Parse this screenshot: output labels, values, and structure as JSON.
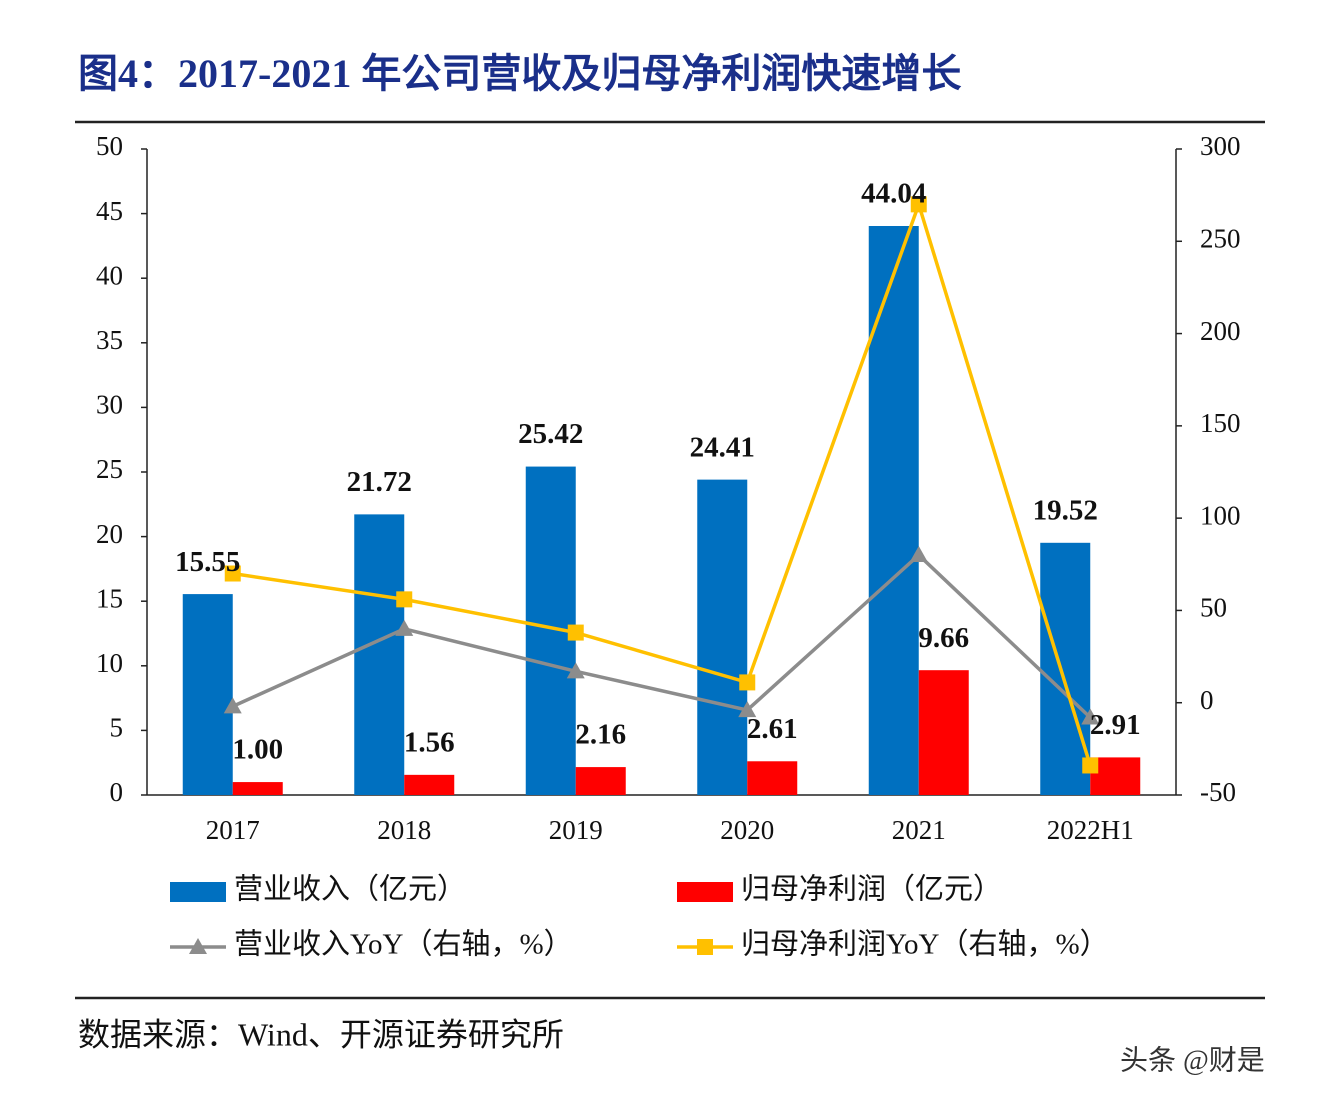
{
  "chart_data": {
    "type": "bar",
    "title": "图4：2017-2021 年公司营收及归母净利润快速增长",
    "source": "数据来源：Wind、开源证券研究所",
    "watermark": "头条 @财是",
    "categories": [
      "2017",
      "2018",
      "2019",
      "2020",
      "2021",
      "2022H1"
    ],
    "series": [
      {
        "name": "营业收入（亿元）",
        "type": "bar",
        "color": "#0070c0",
        "values": [
          15.55,
          21.72,
          25.42,
          24.41,
          44.04,
          19.52
        ],
        "value_labels": [
          "15.55",
          "21.72",
          "25.42",
          "24.41",
          "44.04",
          "19.52"
        ]
      },
      {
        "name": "归母净利润（亿元）",
        "type": "bar",
        "color": "#ff0000",
        "values": [
          1.0,
          1.56,
          2.16,
          2.61,
          9.66,
          2.91
        ],
        "value_labels": [
          "1.00",
          "1.56",
          "2.16",
          "2.61",
          "9.66",
          "2.91"
        ]
      },
      {
        "name": "营业收入YoY（右轴，%）",
        "type": "line",
        "marker": "triangle",
        "axis": "y2",
        "color": "#8c8c8c",
        "values": [
          -2,
          40,
          17,
          -4,
          80,
          -8
        ]
      },
      {
        "name": "归母净利润YoY（右轴，%）",
        "type": "line",
        "marker": "square",
        "axis": "y2",
        "color": "#ffc000",
        "values": [
          70,
          56,
          38,
          11,
          270,
          -34
        ]
      }
    ],
    "ylim": [
      0,
      50
    ],
    "yticks": [
      0,
      5,
      10,
      15,
      20,
      25,
      30,
      35,
      40,
      45,
      50
    ],
    "y2lim": [
      -50,
      300
    ],
    "y2ticks": [
      -50,
      0,
      50,
      100,
      150,
      200,
      250,
      300
    ],
    "grid": false
  }
}
